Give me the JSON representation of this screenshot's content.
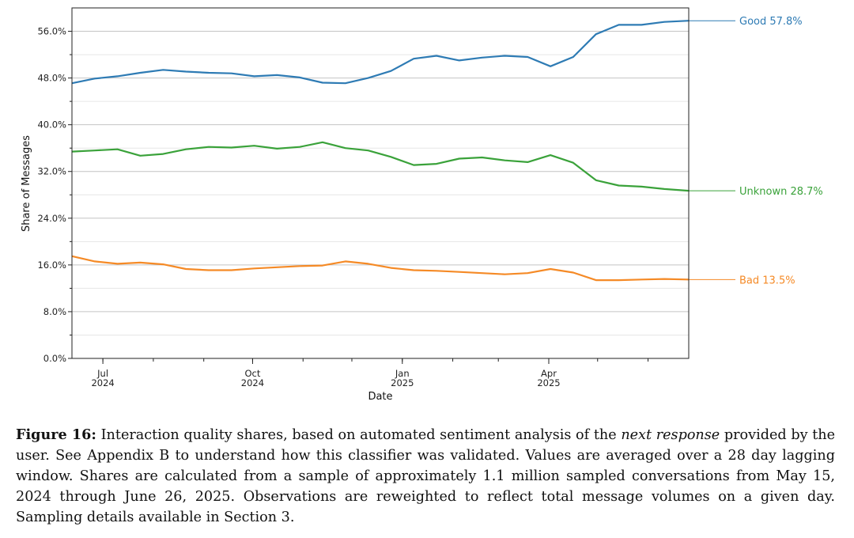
{
  "chart_data": {
    "type": "line",
    "xlabel": "Date",
    "ylabel": "Share of Messages",
    "ylim": [
      0,
      60
    ],
    "xlim": [
      "2024-06-12",
      "2025-06-26"
    ],
    "grid": true,
    "yticks": [
      "0.0%",
      "8.0%",
      "16.0%",
      "24.0%",
      "32.0%",
      "40.0%",
      "48.0%",
      "56.0%"
    ],
    "ytick_values": [
      0,
      8,
      16,
      24,
      32,
      40,
      48,
      56
    ],
    "xticks": [
      {
        "date": "2024-07-01",
        "month": "Jul",
        "year": "2024"
      },
      {
        "date": "2024-10-01",
        "month": "Oct",
        "year": "2024"
      },
      {
        "date": "2025-01-01",
        "month": "Jan",
        "year": "2025"
      },
      {
        "date": "2025-04-01",
        "month": "Apr",
        "year": "2025"
      }
    ],
    "x": [
      "2024-06-12",
      "2024-06-26",
      "2024-07-10",
      "2024-07-24",
      "2024-08-07",
      "2024-08-21",
      "2024-09-04",
      "2024-09-18",
      "2024-10-02",
      "2024-10-16",
      "2024-10-30",
      "2024-11-13",
      "2024-11-27",
      "2024-12-11",
      "2024-12-25",
      "2025-01-08",
      "2025-01-22",
      "2025-02-05",
      "2025-02-19",
      "2025-03-05",
      "2025-03-19",
      "2025-04-02",
      "2025-04-16",
      "2025-04-30",
      "2025-05-14",
      "2025-05-28",
      "2025-06-11",
      "2025-06-26"
    ],
    "series": [
      {
        "name": "Good",
        "label": "Good  57.8%",
        "color": "#2e7bb4",
        "values": [
          47.1,
          47.9,
          48.3,
          48.9,
          49.4,
          49.1,
          48.9,
          48.8,
          48.3,
          48.5,
          48.1,
          47.2,
          47.1,
          48.0,
          49.2,
          51.3,
          51.8,
          51.0,
          51.5,
          51.8,
          51.6,
          50.0,
          51.6,
          55.5,
          57.1,
          57.1,
          57.6,
          57.8
        ]
      },
      {
        "name": "Unknown",
        "label": "Unknown  28.7%",
        "color": "#3aa23a",
        "values": [
          35.4,
          35.6,
          35.8,
          34.7,
          35.0,
          35.8,
          36.2,
          36.1,
          36.4,
          35.9,
          36.2,
          37.0,
          36.0,
          35.6,
          34.5,
          33.1,
          33.3,
          34.2,
          34.4,
          33.9,
          33.6,
          34.8,
          33.5,
          30.5,
          29.6,
          29.4,
          29.0,
          28.7
        ]
      },
      {
        "name": "Bad",
        "label": "Bad  13.5%",
        "color": "#f58a26",
        "values": [
          17.5,
          16.6,
          16.2,
          16.4,
          16.1,
          15.3,
          15.1,
          15.1,
          15.4,
          15.6,
          15.8,
          15.9,
          16.6,
          16.2,
          15.5,
          15.1,
          15.0,
          14.8,
          14.6,
          14.4,
          14.6,
          15.3,
          14.7,
          13.4,
          13.4,
          13.5,
          13.6,
          13.5
        ]
      }
    ]
  },
  "caption": {
    "figure_label": "Figure 16:",
    "text_before": " Interaction quality shares, based on automated sentiment analysis of the ",
    "emphasis": "next response",
    "text_after": " provided by the user. See Appendix B to understand how this classifier was validated. Values are averaged over a 28 day lagging window. Shares are calculated from a sample of approximately 1.1 million sampled conversations from May 15, 2024 through June 26, 2025. Observations are reweighted to reflect total message volumes on a given day. Sampling details available in Section 3."
  }
}
